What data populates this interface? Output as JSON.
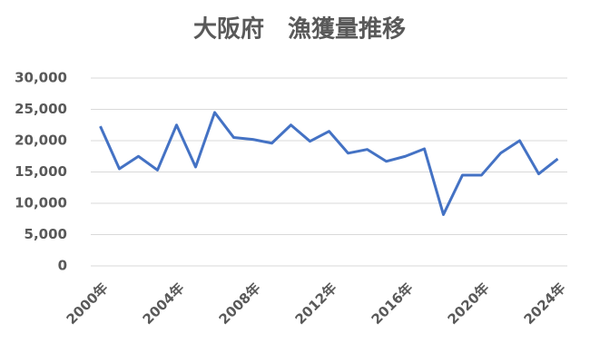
{
  "chart_data": {
    "type": "line",
    "title": "大阪府　漁獲量推移",
    "categories": [
      "2000年",
      null,
      null,
      null,
      "2004年",
      null,
      null,
      null,
      "2008年",
      null,
      null,
      null,
      "2012年",
      null,
      null,
      null,
      "2016年",
      null,
      null,
      null,
      "2020年",
      null,
      null,
      null,
      "2024年"
    ],
    "series": [
      {
        "name": "漁獲量",
        "color": "#4472c4",
        "values": [
          22300,
          15500,
          17500,
          15300,
          22500,
          15800,
          24500,
          20500,
          20200,
          19600,
          22500,
          19900,
          21500,
          18000,
          18600,
          16700,
          17500,
          18700,
          8200,
          14500,
          14500,
          18000,
          20000,
          14700,
          17100
        ]
      }
    ],
    "ylim": [
      0,
      30000
    ],
    "yticks": [
      0,
      {
        "value": 5000,
        "label": "5,000"
      },
      {
        "value": 10000,
        "label": "10,000"
      },
      {
        "value": 15000,
        "label": "15,000"
      },
      {
        "value": 20000,
        "label": "20,000"
      },
      {
        "value": 25000,
        "label": "25,000"
      },
      {
        "value": 30000,
        "label": "30,000"
      }
    ],
    "grid": true
  }
}
